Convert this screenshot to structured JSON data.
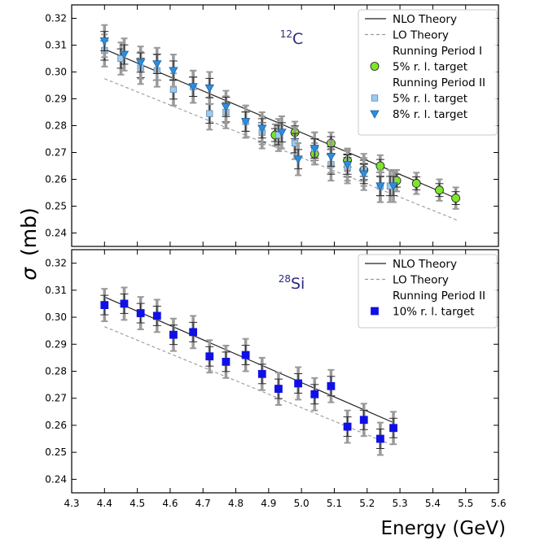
{
  "figure": {
    "ylabel_symbol": "σ",
    "ylabel_unit": "(mb)",
    "xlabel": "Energy (GeV)"
  },
  "colors": {
    "nlo": "#222222",
    "lo": "#999999",
    "circle_green": "#7de62a",
    "square_light": "#9ccaf0",
    "triangle_blue": "#2a8fe0",
    "square_dark": "#1010e6",
    "errorbar_outer": "#9a9a9a",
    "errorbar_inner": "#2a2a2a",
    "nucleus_text": "#2a2a80"
  },
  "chart_data": [
    {
      "type": "scatter",
      "nucleus": {
        "mass_number": "12",
        "symbol": "C"
      },
      "xlim": [
        4.3,
        5.6
      ],
      "ylim": [
        0.235,
        0.325
      ],
      "xticks": [
        "4.3",
        "4.4",
        "4.5",
        "4.6",
        "4.7",
        "4.8",
        "4.9",
        "5.0",
        "5.1",
        "5.2",
        "5.3",
        "5.4",
        "5.5",
        "5.6"
      ],
      "yticks": [
        "0.24",
        "0.25",
        "0.26",
        "0.27",
        "0.28",
        "0.29",
        "0.30",
        "0.31",
        "0.32"
      ],
      "legend_position": "top-right",
      "legend": [
        "NLO Theory",
        "LO   Theory",
        "Running Period I",
        "5% r. l. target",
        "Running Period II",
        "5% r. l. target",
        "8% r. l. target"
      ],
      "theory": [
        {
          "name": "NLO Theory",
          "style": "solid",
          "x": [
            4.4,
            5.48
          ],
          "y": [
            0.3085,
            0.2525
          ]
        },
        {
          "name": "LO   Theory",
          "style": "dashed",
          "x": [
            4.4,
            5.48
          ],
          "y": [
            0.2975,
            0.2445
          ]
        }
      ],
      "series": [
        {
          "name": "5% r. l. target",
          "group": "Running Period I",
          "marker": "circle",
          "x": [
            4.92,
            4.98,
            5.04,
            5.09,
            5.14,
            5.19,
            5.24,
            5.29,
            5.35,
            5.42,
            5.47
          ],
          "y": [
            0.2765,
            0.2775,
            0.2695,
            0.2735,
            0.267,
            0.2635,
            0.265,
            0.2595,
            0.2585,
            0.256,
            0.253
          ],
          "err": [
            0.004,
            0.004,
            0.004,
            0.004,
            0.004,
            0.004,
            0.004,
            0.004,
            0.004,
            0.004,
            0.004
          ]
        },
        {
          "name": "5% r. l. target",
          "group": "Running Period II",
          "marker": "square",
          "x": [
            4.4,
            4.45,
            4.51,
            4.56,
            4.61,
            4.67,
            4.72,
            4.77,
            4.83,
            4.88,
            4.93,
            4.98,
            5.04,
            5.09,
            5.14,
            5.19,
            5.24,
            5.27
          ],
          "y": [
            0.308,
            0.305,
            0.3015,
            0.3005,
            0.2935,
            0.2945,
            0.2845,
            0.285,
            0.2815,
            0.2775,
            0.2765,
            0.2735,
            0.2715,
            0.2655,
            0.2645,
            0.2635,
            0.2575,
            0.2575
          ],
          "err": [
            0.006,
            0.006,
            0.006,
            0.006,
            0.006,
            0.006,
            0.006,
            0.006,
            0.006,
            0.006,
            0.006,
            0.006,
            0.006,
            0.006,
            0.006,
            0.006,
            0.006,
            0.006
          ]
        },
        {
          "name": "8% r. l. target",
          "group": "Running Period II",
          "marker": "triangle",
          "x": [
            4.4,
            4.46,
            4.51,
            4.56,
            4.61,
            4.67,
            4.72,
            4.77,
            4.83,
            4.88,
            4.94,
            4.99,
            5.04,
            5.09,
            5.14,
            5.19,
            5.24,
            5.28
          ],
          "y": [
            0.3115,
            0.3065,
            0.3035,
            0.303,
            0.3005,
            0.2945,
            0.294,
            0.287,
            0.2815,
            0.279,
            0.2775,
            0.2675,
            0.2715,
            0.2685,
            0.2655,
            0.262,
            0.2575,
            0.2575
          ],
          "err": [
            0.006,
            0.006,
            0.006,
            0.006,
            0.006,
            0.006,
            0.006,
            0.006,
            0.006,
            0.006,
            0.006,
            0.006,
            0.006,
            0.006,
            0.006,
            0.006,
            0.006,
            0.006
          ]
        }
      ]
    },
    {
      "type": "scatter",
      "nucleus": {
        "mass_number": "28",
        "symbol": "Si"
      },
      "xlim": [
        4.3,
        5.6
      ],
      "ylim": [
        0.235,
        0.325
      ],
      "xticks": [
        "4.3",
        "4.4",
        "4.5",
        "4.6",
        "4.7",
        "4.8",
        "4.9",
        "5.0",
        "5.1",
        "5.2",
        "5.3",
        "5.4",
        "5.5",
        "5.6"
      ],
      "yticks": [
        "0.24",
        "0.25",
        "0.26",
        "0.27",
        "0.28",
        "0.29",
        "0.30",
        "0.31",
        "0.32"
      ],
      "legend_position": "top-right",
      "legend": [
        "NLO Theory",
        "LO Theory",
        "Running Period II",
        "10% r. l. target"
      ],
      "theory": [
        {
          "name": "NLO Theory",
          "style": "solid",
          "x": [
            4.4,
            5.28
          ],
          "y": [
            0.3075,
            0.261
          ]
        },
        {
          "name": "LO Theory",
          "style": "dashed",
          "x": [
            4.4,
            5.28
          ],
          "y": [
            0.2965,
            0.2525
          ]
        }
      ],
      "series": [
        {
          "name": "10% r. l. target",
          "group": "Running Period II",
          "marker": "square",
          "x": [
            4.4,
            4.46,
            4.51,
            4.56,
            4.61,
            4.67,
            4.72,
            4.77,
            4.83,
            4.88,
            4.93,
            4.99,
            5.04,
            5.09,
            5.14,
            5.19,
            5.24,
            5.28
          ],
          "y": [
            0.3045,
            0.305,
            0.3015,
            0.3005,
            0.2935,
            0.2945,
            0.2855,
            0.2835,
            0.286,
            0.279,
            0.2735,
            0.2755,
            0.2715,
            0.2745,
            0.2595,
            0.262,
            0.255,
            0.259
          ],
          "err": [
            0.006,
            0.006,
            0.006,
            0.006,
            0.006,
            0.006,
            0.006,
            0.006,
            0.006,
            0.006,
            0.006,
            0.006,
            0.006,
            0.006,
            0.006,
            0.006,
            0.006,
            0.006
          ]
        }
      ]
    }
  ]
}
